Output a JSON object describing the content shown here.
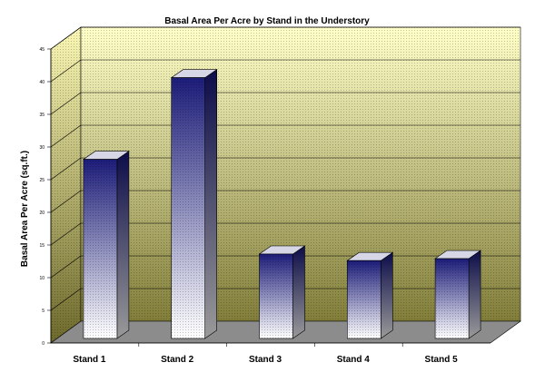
{
  "chart_data": {
    "type": "bar",
    "title": "Basal Area Per Acre by Stand in the Understory",
    "xlabel": "",
    "ylabel": "Basal Area Per Acre (sq.ft.)",
    "categories": [
      "Stand 1",
      "Stand 2",
      "Stand 3",
      "Stand 4",
      "Stand 5"
    ],
    "values": [
      29.5,
      42,
      15,
      14,
      14.3
    ],
    "ylim": [
      0,
      45
    ],
    "yticks": [
      "0",
      "5",
      "10",
      "15",
      "20",
      "25",
      "30",
      "35",
      "40",
      "45"
    ],
    "grid": true,
    "legend": "none",
    "colors": {
      "wall_top": "#ffffc8",
      "wall_bottom": "#827e3a",
      "floor": "#8c8c8c",
      "bar_top": "#1c1c7a",
      "bar_bottom": "#ffffff"
    }
  }
}
